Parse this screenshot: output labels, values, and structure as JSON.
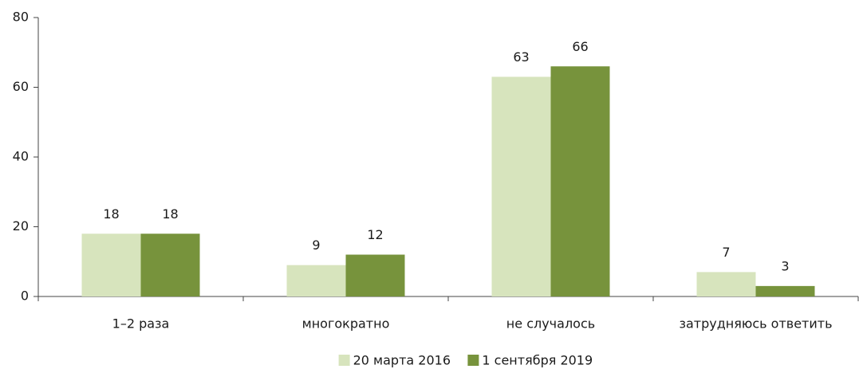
{
  "chart_data": {
    "type": "bar",
    "categories": [
      "1–2 раза",
      "многократно",
      "не случалось",
      "затрудняюсь ответить"
    ],
    "series": [
      {
        "name": "20 марта 2016",
        "color": "#d7e4bd",
        "values": [
          18,
          9,
          63,
          7
        ]
      },
      {
        "name": "1 сентября 2019",
        "color": "#77933c",
        "values": [
          18,
          12,
          66,
          3
        ]
      }
    ],
    "ylim": [
      0,
      80
    ],
    "yticks": [
      0,
      20,
      40,
      60,
      80
    ],
    "grid": false,
    "legend": "bottom"
  }
}
